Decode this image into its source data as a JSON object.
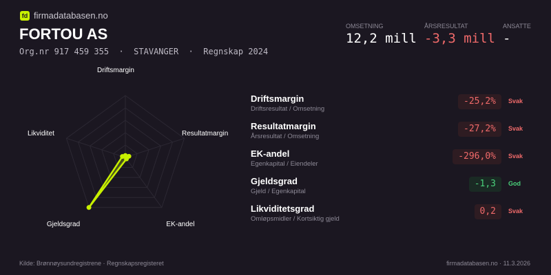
{
  "brand": {
    "logo": "fd",
    "site": "firmadatabasen.no"
  },
  "company": {
    "name": "FORTOU AS",
    "subtitle": "Org.nr 917 459 355  ·  STAVANGER  ·  Regnskap 2024"
  },
  "kpis": [
    {
      "label": "OMSETNING",
      "value": "12,2 mill",
      "tone": "neutral"
    },
    {
      "label": "ÅRSRESULTAT",
      "value": "-3,3 mill",
      "tone": "negative"
    },
    {
      "label": "ANSATTE",
      "value": "-",
      "tone": "neutral"
    }
  ],
  "ratios": [
    {
      "name": "Driftsmargin",
      "formula": "Driftsresultat / Omsetning",
      "value": "-25,2%",
      "status": "Svak",
      "tone": "bad"
    },
    {
      "name": "Resultatmargin",
      "formula": "Årsresultat / Omsetning",
      "value": "-27,2%",
      "status": "Svak",
      "tone": "bad"
    },
    {
      "name": "EK-andel",
      "formula": "Egenkapital / Eiendeler",
      "value": "-296,0%",
      "status": "Svak",
      "tone": "bad"
    },
    {
      "name": "Gjeldsgrad",
      "formula": "Gjeld / Egenkapital",
      "value": "-1,3",
      "status": "God",
      "tone": "good"
    },
    {
      "name": "Likviditetsgrad",
      "formula": "Omløpsmidler / Kortsiktig gjeld",
      "value": "0,2",
      "status": "Svak",
      "tone": "bad"
    }
  ],
  "chart_data": {
    "type": "radar",
    "axes": [
      "Driftsmargin",
      "Resultatmargin",
      "EK-andel",
      "Gjeldsgrad",
      "Likviditet"
    ],
    "values": [
      0.03,
      0.06,
      0.03,
      1.0,
      0.05
    ],
    "range": [
      0,
      1
    ],
    "rings": 5,
    "color": "#c8f000"
  },
  "footer": {
    "source": "Kilde: Brønnøysundregistrene · Regnskapsregisteret",
    "right": "firmadatabasen.no · 11.3.2026"
  }
}
